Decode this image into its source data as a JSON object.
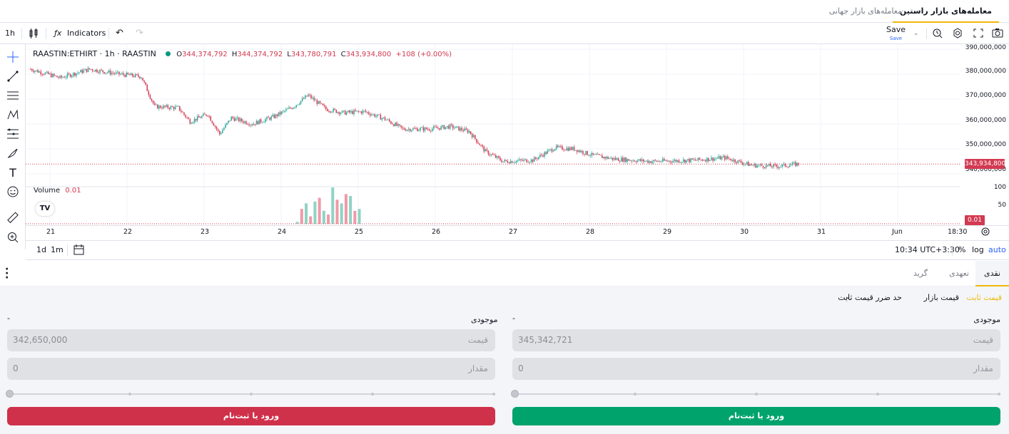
{
  "market_tabs": [
    {
      "label": "معامله‌های بازار راستین",
      "active": true
    },
    {
      "label": "معامله‌های بازار جهانی",
      "active": false
    }
  ],
  "toolbar": {
    "interval": "1h",
    "indicators_label": "Indicators",
    "save_label": "Save",
    "save_sub": "Save"
  },
  "legend": {
    "symbol": "RAASTIN:ETHIRT · 1h · RAASTIN",
    "open_key": "O",
    "open": "344,374,792",
    "high_key": "H",
    "high": "344,374,792",
    "low_key": "L",
    "low": "343,780,791",
    "close_key": "C",
    "close": "343,934,800",
    "change": "+108 (+0.00%)"
  },
  "volume_legend": {
    "label": "Volume",
    "value": "0.01"
  },
  "price_axis": [
    "390,000,000",
    "380,000,000",
    "370,000,000",
    "360,000,000",
    "350,000,000",
    "340,000,000"
  ],
  "last_price": "343,934,800",
  "volume_axis": [
    "100",
    "50"
  ],
  "volume_last": "0.01",
  "time_axis": [
    "21",
    "22",
    "23",
    "24",
    "25",
    "26",
    "27",
    "28",
    "29",
    "30",
    "31",
    "Jun",
    "18:30"
  ],
  "bottom_bar": {
    "range1": "1d",
    "range2": "1m",
    "clock": "10:34 UTC+3:30",
    "percent": "%",
    "log": "log",
    "auto": "auto"
  },
  "order_tabs": [
    {
      "label": "نقدی",
      "active": true
    },
    {
      "label": "تعهدی",
      "active": false
    },
    {
      "label": "گرید",
      "active": false
    }
  ],
  "order_types": {
    "limit": "قیمت ثابت",
    "market": "قیمت بازار",
    "stop": "حد ضرر قیمت ثابت"
  },
  "buy": {
    "balance_label": "موجودی",
    "balance_value": "-",
    "price_label": "قیمت",
    "price_value": "345,342,721",
    "amount_label": "مقدار",
    "amount_value": "0",
    "button": "ورود یا ثبت‌نام"
  },
  "sell": {
    "balance_label": "موجودی",
    "balance_value": "-",
    "price_label": "قیمت",
    "price_value": "342,650,000",
    "amount_label": "مقدار",
    "amount_value": "0",
    "button": "ورود یا ثبت‌نام"
  },
  "colors": {
    "up": "#26a69a",
    "down": "#d23a51",
    "accent": "#f0b90b",
    "buy": "#00a36c",
    "sell": "#cf304a",
    "link": "#2962ff"
  },
  "chart_data": {
    "type": "candlestick",
    "symbol": "RAASTIN:ETHIRT",
    "interval": "1h",
    "ylim": [
      336000000,
      392000000
    ],
    "x_labels": [
      "21",
      "22",
      "23",
      "24",
      "25",
      "26",
      "27",
      "28",
      "29",
      "30",
      "31",
      "Jun",
      "18:30"
    ],
    "anchors": [
      [
        0,
        382000000
      ],
      [
        20,
        378500000
      ],
      [
        40,
        382000000
      ],
      [
        60,
        380000000
      ],
      [
        75,
        379000000
      ],
      [
        84,
        367000000
      ],
      [
        100,
        366500000
      ],
      [
        108,
        361000000
      ],
      [
        120,
        364000000
      ],
      [
        128,
        356000000
      ],
      [
        136,
        362500000
      ],
      [
        150,
        360000000
      ],
      [
        165,
        363000000
      ],
      [
        178,
        367000000
      ],
      [
        188,
        371500000
      ],
      [
        200,
        366000000
      ],
      [
        212,
        364500000
      ],
      [
        226,
        365000000
      ],
      [
        240,
        362000000
      ],
      [
        252,
        358000000
      ],
      [
        270,
        358000000
      ],
      [
        284,
        359000000
      ],
      [
        297,
        357000000
      ],
      [
        308,
        349000000
      ],
      [
        320,
        345000000
      ],
      [
        340,
        345500000
      ],
      [
        355,
        350500000
      ],
      [
        368,
        350000000
      ],
      [
        380,
        347500000
      ],
      [
        395,
        346000000
      ],
      [
        420,
        345000000
      ],
      [
        450,
        345500000
      ],
      [
        470,
        346500000
      ],
      [
        488,
        343500000
      ],
      [
        505,
        343000000
      ],
      [
        520,
        344000000
      ]
    ],
    "volume": [
      {
        "i": 180,
        "v": 5
      },
      {
        "i": 183,
        "v": 40
      },
      {
        "i": 186,
        "v": 55
      },
      {
        "i": 189,
        "v": 20
      },
      {
        "i": 192,
        "v": 60
      },
      {
        "i": 195,
        "v": 70
      },
      {
        "i": 198,
        "v": 35
      },
      {
        "i": 201,
        "v": 25
      },
      {
        "i": 204,
        "v": 98
      },
      {
        "i": 207,
        "v": 65
      },
      {
        "i": 210,
        "v": 55
      },
      {
        "i": 213,
        "v": 80
      },
      {
        "i": 216,
        "v": 75
      },
      {
        "i": 219,
        "v": 35
      },
      {
        "i": 222,
        "v": 40
      }
    ],
    "last": 343934800
  }
}
